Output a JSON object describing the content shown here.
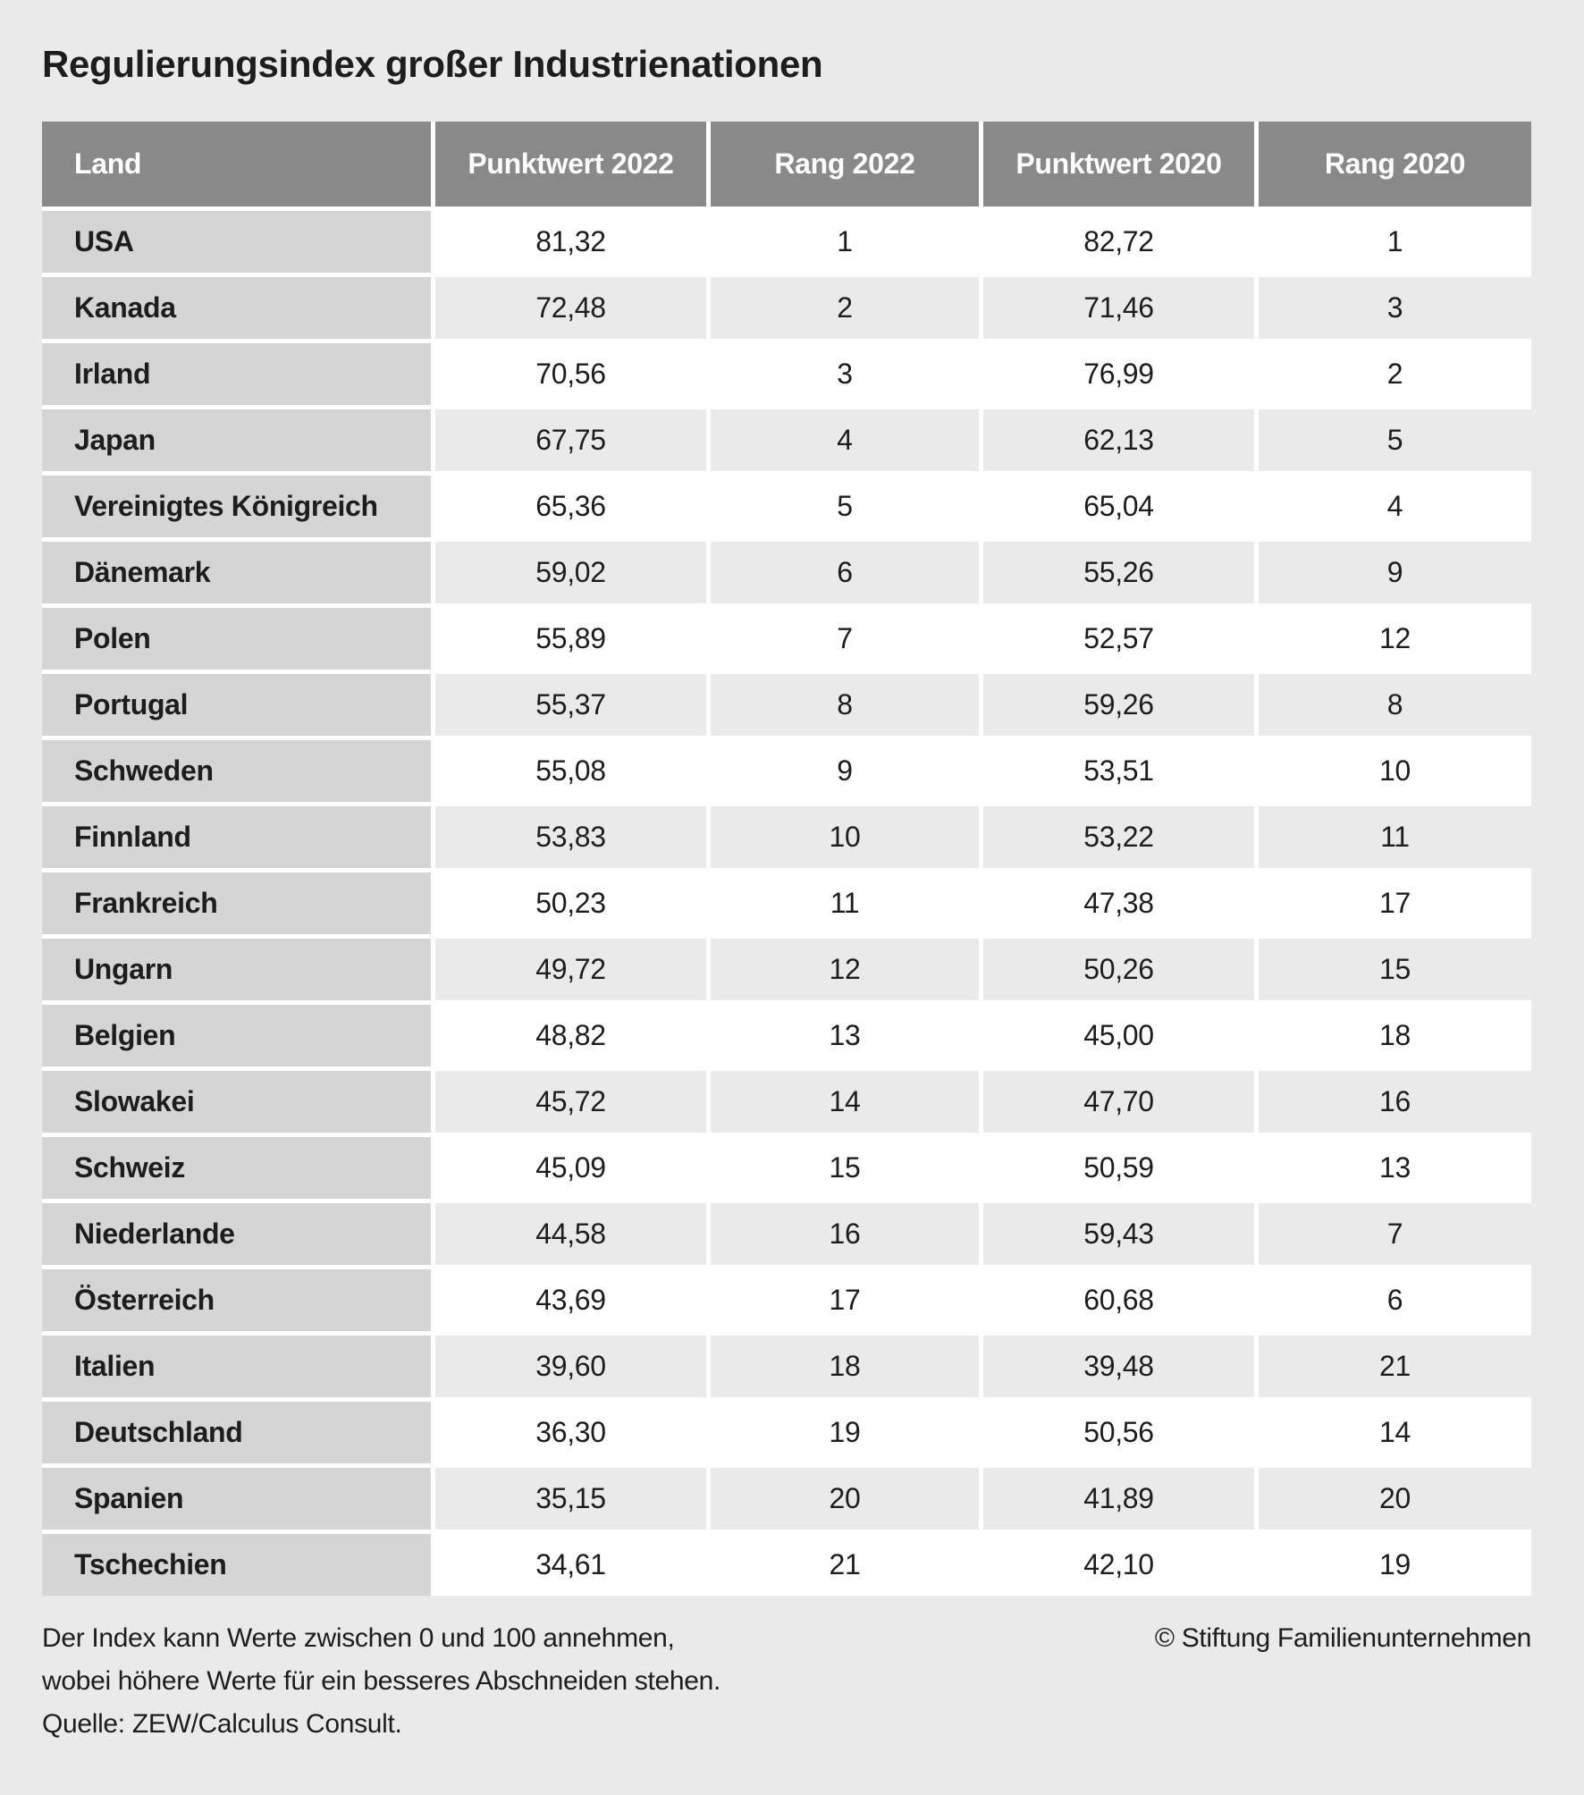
{
  "page": {
    "background": "#eaeaea",
    "colors": {
      "header_bg": "#898989",
      "header_text": "#ffffff",
      "land_cell_bg": "#d5d5d5",
      "row_white_bg": "#ffffff",
      "row_alt_bg": "#eaeaea",
      "separator": "#ffffff",
      "text": "#1d1d1b"
    }
  },
  "chart_data": {
    "type": "table",
    "title": "Regulierungsindex großer Industrienationen",
    "columns": [
      "Land",
      "Punktwert 2022",
      "Rang 2022",
      "Punktwert 2020",
      "Rang 2020"
    ],
    "rows": [
      [
        "USA",
        "81,32",
        "1",
        "82,72",
        "1"
      ],
      [
        "Kanada",
        "72,48",
        "2",
        "71,46",
        "3"
      ],
      [
        "Irland",
        "70,56",
        "3",
        "76,99",
        "2"
      ],
      [
        "Japan",
        "67,75",
        "4",
        "62,13",
        "5"
      ],
      [
        "Vereinigtes Königreich",
        "65,36",
        "5",
        "65,04",
        "4"
      ],
      [
        "Dänemark",
        "59,02",
        "6",
        "55,26",
        "9"
      ],
      [
        "Polen",
        "55,89",
        "7",
        "52,57",
        "12"
      ],
      [
        "Portugal",
        "55,37",
        "8",
        "59,26",
        "8"
      ],
      [
        "Schweden",
        "55,08",
        "9",
        "53,51",
        "10"
      ],
      [
        "Finnland",
        "53,83",
        "10",
        "53,22",
        "11"
      ],
      [
        "Frankreich",
        "50,23",
        "11",
        "47,38",
        "17"
      ],
      [
        "Ungarn",
        "49,72",
        "12",
        "50,26",
        "15"
      ],
      [
        "Belgien",
        "48,82",
        "13",
        "45,00",
        "18"
      ],
      [
        "Slowakei",
        "45,72",
        "14",
        "47,70",
        "16"
      ],
      [
        "Schweiz",
        "45,09",
        "15",
        "50,59",
        "13"
      ],
      [
        "Niederlande",
        "44,58",
        "16",
        "59,43",
        "7"
      ],
      [
        "Österreich",
        "43,69",
        "17",
        "60,68",
        "6"
      ],
      [
        "Italien",
        "39,60",
        "18",
        "39,48",
        "21"
      ],
      [
        "Deutschland",
        "36,30",
        "19",
        "50,56",
        "14"
      ],
      [
        "Spanien",
        "35,15",
        "20",
        "41,89",
        "20"
      ],
      [
        "Tschechien",
        "34,61",
        "21",
        "42,10",
        "19"
      ]
    ],
    "value_range_note": "Index 0–100",
    "legend_position": "none"
  },
  "footer": {
    "note_lines": [
      "Der Index kann Werte zwischen 0 und 100 annehmen,",
      "wobei höhere Werte für ein besseres Abschneiden stehen.",
      "Quelle: ZEW/Calculus Consult."
    ],
    "copyright": "© Stiftung Familienunternehmen"
  }
}
